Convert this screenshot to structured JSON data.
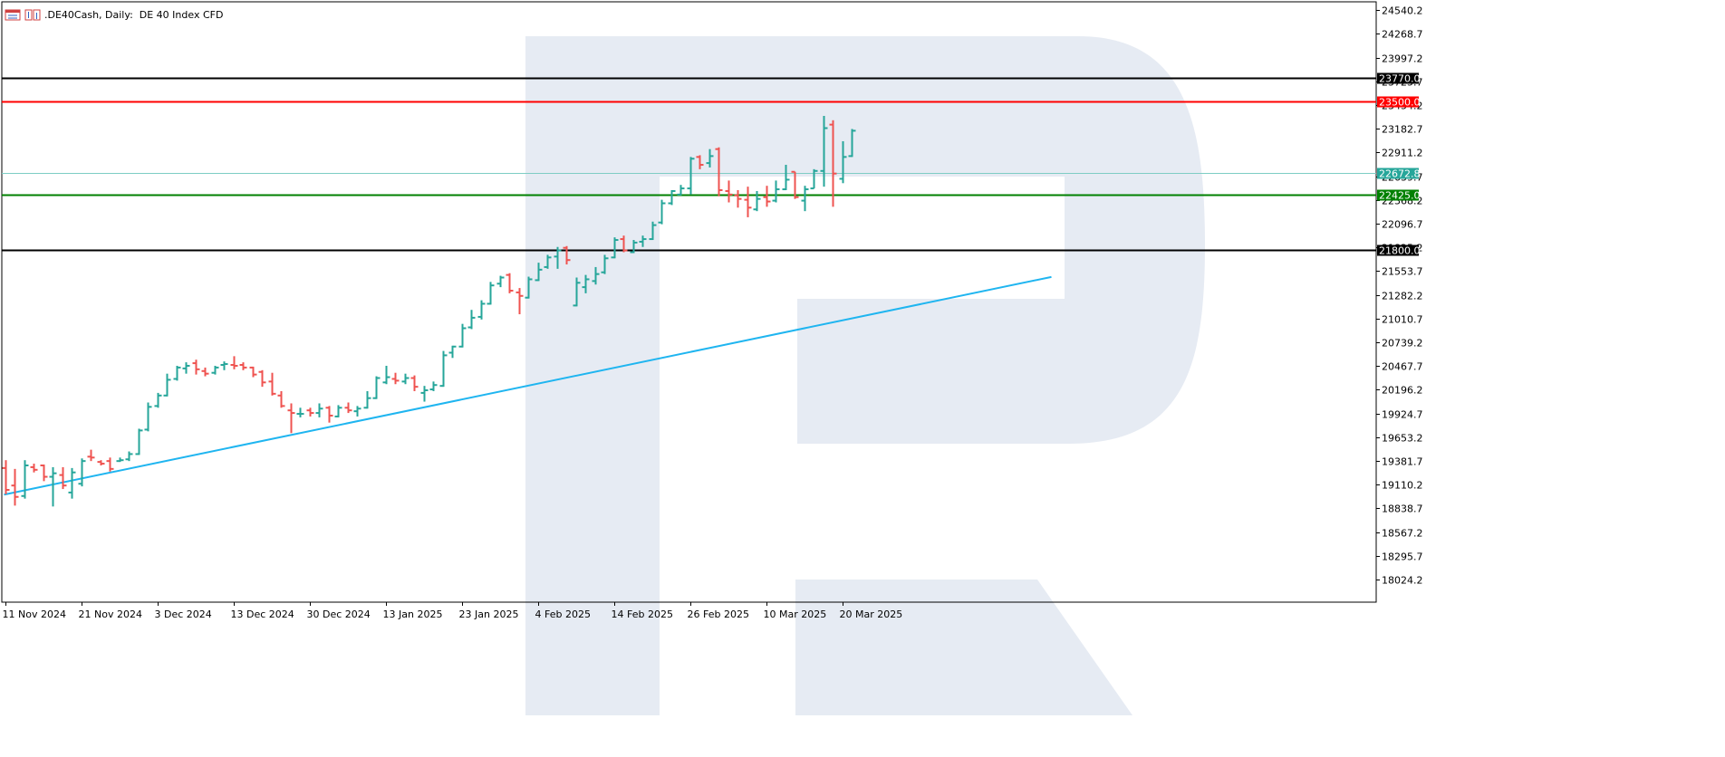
{
  "header": {
    "title": ".DE40Cash, Daily:  DE 40 Index CFD",
    "icons": [
      "chart-window-icon",
      "indicator-window-icon"
    ]
  },
  "colors": {
    "bull": "#26a69a",
    "bear": "#ef5350",
    "resistance_strong": "#000000",
    "resistance": "#ff0000",
    "support": "#008000",
    "current_price": "#7ecdc4",
    "trendline": "#1fb5f0",
    "watermark": "#e6ebf3",
    "axis": "#000000"
  },
  "chart_data": {
    "type": "ohlc",
    "title": ".DE40Cash, Daily:  DE 40 Index CFD",
    "ylim": [
      17900,
      24590
    ],
    "y_ticks": [
      "24540.2",
      "24268.7",
      "23997.2",
      "23725.7",
      "23454.2",
      "23182.7",
      "22911.2",
      "22639.7",
      "22368.2",
      "22096.7",
      "21825.2",
      "21553.7",
      "21282.2",
      "21010.7",
      "20739.2",
      "20467.7",
      "20196.2",
      "19924.7",
      "19653.2",
      "19381.7",
      "19110.2",
      "18838.7",
      "18567.2",
      "18295.7",
      "18024.2"
    ],
    "x_labels": [
      {
        "label": "11 Nov 2024",
        "index": 0
      },
      {
        "label": "21 Nov 2024",
        "index": 8
      },
      {
        "label": "3 Dec 2024",
        "index": 16
      },
      {
        "label": "13 Dec 2024",
        "index": 24
      },
      {
        "label": "30 Dec 2024",
        "index": 32
      },
      {
        "label": "13 Jan 2025",
        "index": 40
      },
      {
        "label": "23 Jan 2025",
        "index": 48
      },
      {
        "label": "4 Feb 2025",
        "index": 56
      },
      {
        "label": "14 Feb 2025",
        "index": 64
      },
      {
        "label": "26 Feb 2025",
        "index": 72
      },
      {
        "label": "10 Mar 2025",
        "index": 80
      },
      {
        "label": "20 Mar 2025",
        "index": 88
      }
    ],
    "bars": [
      {
        "o": 19300,
        "h": 19390,
        "l": 19000,
        "c": 19050
      },
      {
        "o": 19100,
        "h": 19290,
        "l": 18870,
        "c": 18970
      },
      {
        "o": 18980,
        "h": 19390,
        "l": 18950,
        "c": 19330
      },
      {
        "o": 19310,
        "h": 19350,
        "l": 19250,
        "c": 19280
      },
      {
        "o": 19330,
        "h": 19340,
        "l": 19150,
        "c": 19200
      },
      {
        "o": 19200,
        "h": 19310,
        "l": 18860,
        "c": 19240
      },
      {
        "o": 19220,
        "h": 19310,
        "l": 19060,
        "c": 19100
      },
      {
        "o": 19020,
        "h": 19300,
        "l": 18950,
        "c": 19250
      },
      {
        "o": 19120,
        "h": 19410,
        "l": 19090,
        "c": 19380
      },
      {
        "o": 19430,
        "h": 19510,
        "l": 19380,
        "c": 19420
      },
      {
        "o": 19370,
        "h": 19390,
        "l": 19330,
        "c": 19350
      },
      {
        "o": 19380,
        "h": 19420,
        "l": 19260,
        "c": 19290
      },
      {
        "o": 19380,
        "h": 19420,
        "l": 19370,
        "c": 19390
      },
      {
        "o": 19400,
        "h": 19490,
        "l": 19380,
        "c": 19460
      },
      {
        "o": 19460,
        "h": 19750,
        "l": 19450,
        "c": 19730
      },
      {
        "o": 19740,
        "h": 20050,
        "l": 19720,
        "c": 20000
      },
      {
        "o": 20010,
        "h": 20160,
        "l": 19990,
        "c": 20130
      },
      {
        "o": 20130,
        "h": 20380,
        "l": 20120,
        "c": 20310
      },
      {
        "o": 20320,
        "h": 20470,
        "l": 20300,
        "c": 20450
      },
      {
        "o": 20440,
        "h": 20510,
        "l": 20380,
        "c": 20470
      },
      {
        "o": 20500,
        "h": 20540,
        "l": 20370,
        "c": 20430
      },
      {
        "o": 20410,
        "h": 20450,
        "l": 20350,
        "c": 20380
      },
      {
        "o": 20390,
        "h": 20470,
        "l": 20370,
        "c": 20450
      },
      {
        "o": 20480,
        "h": 20520,
        "l": 20420,
        "c": 20490
      },
      {
        "o": 20480,
        "h": 20580,
        "l": 20430,
        "c": 20470
      },
      {
        "o": 20480,
        "h": 20510,
        "l": 20420,
        "c": 20450
      },
      {
        "o": 20450,
        "h": 20460,
        "l": 20340,
        "c": 20370
      },
      {
        "o": 20400,
        "h": 20420,
        "l": 20230,
        "c": 20280
      },
      {
        "o": 20290,
        "h": 20390,
        "l": 20130,
        "c": 20150
      },
      {
        "o": 20130,
        "h": 20180,
        "l": 19990,
        "c": 20010
      },
      {
        "o": 19960,
        "h": 20040,
        "l": 19700,
        "c": 19930
      },
      {
        "o": 19920,
        "h": 19990,
        "l": 19880,
        "c": 19920
      },
      {
        "o": 19960,
        "h": 19990,
        "l": 19890,
        "c": 19930
      },
      {
        "o": 19930,
        "h": 20040,
        "l": 19880,
        "c": 19980
      },
      {
        "o": 19990,
        "h": 20010,
        "l": 19820,
        "c": 19900
      },
      {
        "o": 19890,
        "h": 20020,
        "l": 19880,
        "c": 19990
      },
      {
        "o": 19990,
        "h": 20050,
        "l": 19930,
        "c": 19960
      },
      {
        "o": 19950,
        "h": 20010,
        "l": 19890,
        "c": 19980
      },
      {
        "o": 19990,
        "h": 20180,
        "l": 19980,
        "c": 20100
      },
      {
        "o": 20100,
        "h": 20350,
        "l": 20090,
        "c": 20330
      },
      {
        "o": 20280,
        "h": 20470,
        "l": 20260,
        "c": 20340
      },
      {
        "o": 20320,
        "h": 20390,
        "l": 20260,
        "c": 20300
      },
      {
        "o": 20290,
        "h": 20380,
        "l": 20260,
        "c": 20330
      },
      {
        "o": 20330,
        "h": 20360,
        "l": 20180,
        "c": 20230
      },
      {
        "o": 20160,
        "h": 20240,
        "l": 20060,
        "c": 20190
      },
      {
        "o": 20200,
        "h": 20290,
        "l": 20180,
        "c": 20250
      },
      {
        "o": 20240,
        "h": 20640,
        "l": 20230,
        "c": 20590
      },
      {
        "o": 20620,
        "h": 20700,
        "l": 20560,
        "c": 20690
      },
      {
        "o": 20690,
        "h": 20950,
        "l": 20680,
        "c": 20900
      },
      {
        "o": 20910,
        "h": 21110,
        "l": 20890,
        "c": 21020
      },
      {
        "o": 21030,
        "h": 21220,
        "l": 21000,
        "c": 21180
      },
      {
        "o": 21180,
        "h": 21430,
        "l": 21170,
        "c": 21390
      },
      {
        "o": 21410,
        "h": 21500,
        "l": 21370,
        "c": 21480
      },
      {
        "o": 21510,
        "h": 21530,
        "l": 21300,
        "c": 21330
      },
      {
        "o": 21310,
        "h": 21360,
        "l": 21060,
        "c": 21270
      },
      {
        "o": 21250,
        "h": 21490,
        "l": 21240,
        "c": 21460
      },
      {
        "o": 21450,
        "h": 21650,
        "l": 21440,
        "c": 21570
      },
      {
        "o": 21600,
        "h": 21740,
        "l": 21580,
        "c": 21710
      },
      {
        "o": 21720,
        "h": 21830,
        "l": 21580,
        "c": 21790
      },
      {
        "o": 21820,
        "h": 21840,
        "l": 21630,
        "c": 21680
      },
      {
        "o": 21160,
        "h": 21480,
        "l": 21150,
        "c": 21420
      },
      {
        "o": 21370,
        "h": 21510,
        "l": 21300,
        "c": 21460
      },
      {
        "o": 21440,
        "h": 21600,
        "l": 21400,
        "c": 21520
      },
      {
        "o": 21540,
        "h": 21740,
        "l": 21520,
        "c": 21700
      },
      {
        "o": 21710,
        "h": 21940,
        "l": 21700,
        "c": 21910
      },
      {
        "o": 21920,
        "h": 21960,
        "l": 21770,
        "c": 21790
      },
      {
        "o": 21770,
        "h": 21910,
        "l": 21760,
        "c": 21880
      },
      {
        "o": 21890,
        "h": 21960,
        "l": 21830,
        "c": 21920
      },
      {
        "o": 21920,
        "h": 22120,
        "l": 21910,
        "c": 22080
      },
      {
        "o": 22110,
        "h": 22370,
        "l": 22090,
        "c": 22330
      },
      {
        "o": 22330,
        "h": 22480,
        "l": 22310,
        "c": 22470
      },
      {
        "o": 22430,
        "h": 22540,
        "l": 22420,
        "c": 22500
      },
      {
        "o": 22500,
        "h": 22860,
        "l": 22430,
        "c": 22840
      },
      {
        "o": 22860,
        "h": 22880,
        "l": 22720,
        "c": 22770
      },
      {
        "o": 22790,
        "h": 22950,
        "l": 22740,
        "c": 22870
      },
      {
        "o": 22950,
        "h": 22970,
        "l": 22410,
        "c": 22480
      },
      {
        "o": 22470,
        "h": 22590,
        "l": 22340,
        "c": 22430
      },
      {
        "o": 22420,
        "h": 22480,
        "l": 22280,
        "c": 22380
      },
      {
        "o": 22370,
        "h": 22520,
        "l": 22170,
        "c": 22280
      },
      {
        "o": 22260,
        "h": 22470,
        "l": 22240,
        "c": 22380
      },
      {
        "o": 22400,
        "h": 22530,
        "l": 22290,
        "c": 22350
      },
      {
        "o": 22360,
        "h": 22590,
        "l": 22340,
        "c": 22490
      },
      {
        "o": 22490,
        "h": 22770,
        "l": 22480,
        "c": 22600
      },
      {
        "o": 22690,
        "h": 22690,
        "l": 22380,
        "c": 22400
      },
      {
        "o": 22360,
        "h": 22530,
        "l": 22240,
        "c": 22490
      },
      {
        "o": 22500,
        "h": 22720,
        "l": 22500,
        "c": 22700
      },
      {
        "o": 22700,
        "h": 23330,
        "l": 22520,
        "c": 23190
      },
      {
        "o": 23230,
        "h": 23280,
        "l": 22290,
        "c": 22670
      },
      {
        "o": 22610,
        "h": 23040,
        "l": 22560,
        "c": 22860
      },
      {
        "o": 22870,
        "h": 23180,
        "l": 22860,
        "c": 23160
      }
    ],
    "levels": [
      {
        "name": "resistance-strong",
        "value": 23770,
        "label": "23770.0",
        "color": "#000000"
      },
      {
        "name": "resistance",
        "value": 23500,
        "label": "23500.0",
        "color": "#ff0000"
      },
      {
        "name": "current",
        "value": 22672.8,
        "label": "22672.8",
        "color": "#26a69a"
      },
      {
        "name": "support",
        "value": 22425,
        "label": "22425.0",
        "color": "#008000"
      },
      {
        "name": "support-strong",
        "value": 21800,
        "label": "21800.0",
        "color": "#000000"
      }
    ],
    "trendline": {
      "x0_index": -0.1,
      "y0": 18996,
      "x1_index": 110,
      "y1": 21487
    },
    "grid": false,
    "legend": "none",
    "watermark": "R"
  }
}
